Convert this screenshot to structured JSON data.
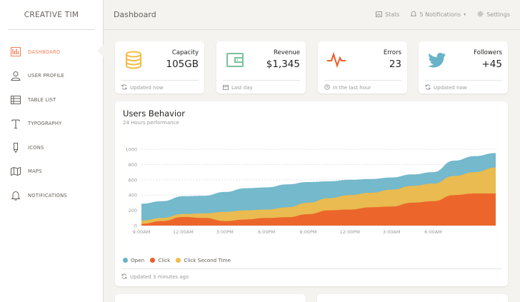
{
  "brand": "CREATIVE TIM",
  "sidebar": {
    "items": [
      {
        "label": "DASHBOARD",
        "icon": "bank-icon",
        "active": true
      },
      {
        "label": "USER PROFILE",
        "icon": "user-icon",
        "active": false
      },
      {
        "label": "TABLE LIST",
        "icon": "list-icon",
        "active": false
      },
      {
        "label": "TYPOGRAPHY",
        "icon": "type-icon",
        "active": false
      },
      {
        "label": "ICONS",
        "icon": "pencil-icon",
        "active": false
      },
      {
        "label": "MAPS",
        "icon": "map-icon",
        "active": false
      },
      {
        "label": "NOTIFICATIONS",
        "icon": "bell-icon",
        "active": false
      }
    ]
  },
  "header": {
    "title": "Dashboard",
    "stats_label": "Stats",
    "notifications_label": "5 Notifications",
    "settings_label": "Settings"
  },
  "stats": [
    {
      "label": "Capacity",
      "value": "105GB",
      "footer": "Updated now",
      "icon": "database-icon",
      "color": "#f3bb45"
    },
    {
      "label": "Revenue",
      "value": "$1,345",
      "footer": "Last day",
      "icon": "wallet-icon",
      "color": "#7ac29a"
    },
    {
      "label": "Errors",
      "value": "23",
      "footer": "In the last hour",
      "icon": "pulse-icon",
      "color": "#eb5e28"
    },
    {
      "label": "Followers",
      "value": "+45",
      "footer": "Updated now",
      "icon": "twitter-icon",
      "color": "#68b3c8"
    }
  ],
  "users_behavior": {
    "title": "Users Behavior",
    "subtitle": "24 Hours performance",
    "footer": "Updated 3 minutes ago"
  },
  "chart_data": {
    "type": "area",
    "categories": [
      "9:00AM",
      "",
      "12:00AM",
      "",
      "3:00PM",
      "",
      "6:00PM",
      "",
      "9:00PM",
      "",
      "12:00PM",
      "",
      "3:00AM",
      "",
      "6:00AM",
      "",
      "",
      ""
    ],
    "x_ticks": [
      "9:00AM",
      "12:00AM",
      "3:00PM",
      "6:00PM",
      "9:00PM",
      "12:00PM",
      "3:00AM",
      "6:00AM"
    ],
    "ylim": [
      0,
      1000
    ],
    "y_ticks": [
      0,
      200,
      400,
      600,
      800,
      1000
    ],
    "grid": true,
    "series": [
      {
        "name": "Open",
        "color": "#68b3c8",
        "values": [
          287,
          320,
          385,
          390,
          440,
          490,
          500,
          540,
          570,
          580,
          600,
          610,
          630,
          670,
          700,
          850,
          910,
          950
        ]
      },
      {
        "name": "Click Second Time",
        "color": "#f3bb45",
        "values": [
          67,
          100,
          152,
          160,
          180,
          200,
          210,
          240,
          300,
          360,
          400,
          430,
          470,
          520,
          550,
          650,
          700,
          760
        ]
      },
      {
        "name": "Click",
        "color": "#eb5e28",
        "values": [
          23,
          60,
          113,
          100,
          60,
          80,
          100,
          110,
          150,
          200,
          210,
          240,
          250,
          300,
          320,
          400,
          420,
          420
        ]
      }
    ],
    "legend": [
      "Open",
      "Click",
      "Click Second Time"
    ],
    "legend_colors": [
      "#68b3c8",
      "#eb5e28",
      "#f3bb45"
    ],
    "legend_position": "bottom-left"
  }
}
